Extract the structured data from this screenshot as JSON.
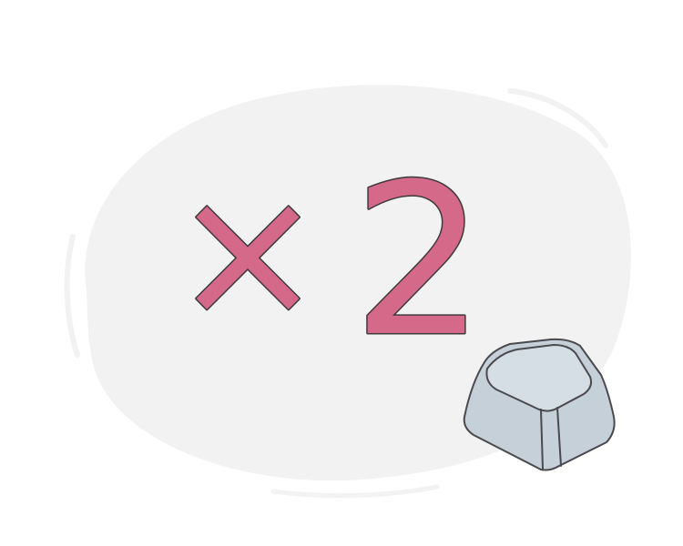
{
  "illustration": {
    "symbol": "×",
    "number": "2",
    "key_icon": "keyboard-key-icon"
  },
  "colors": {
    "background": "#ffffff",
    "blob": "#f2f2f2",
    "glyph_fill": "#d4698a",
    "outline": "#3f3a3c",
    "key_side": "#c5d0d9",
    "key_top": "#d6dee5",
    "key_outline": "#4a4a4e"
  }
}
